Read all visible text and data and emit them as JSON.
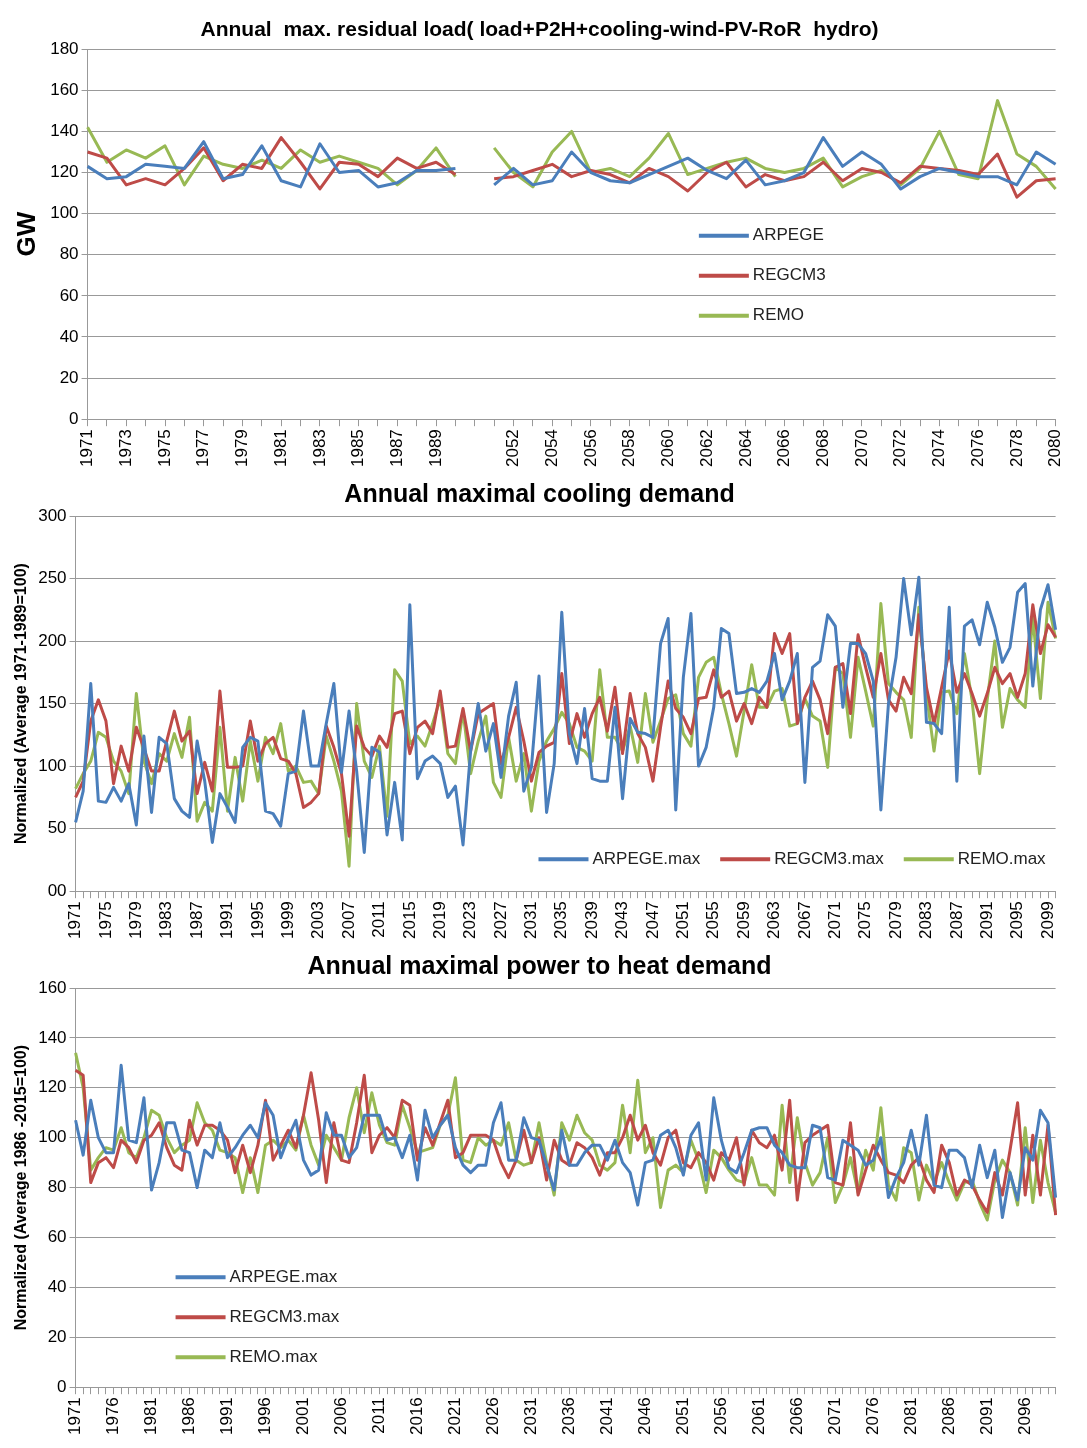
{
  "chart_data": [
    {
      "type": "line",
      "title": "Annual  max. residual load( load+P2H+cooling-wind-PV-RoR  hydro)",
      "ylabel": "GW",
      "categories": [
        "1971",
        null,
        "1973",
        null,
        "1975",
        null,
        "1977",
        null,
        "1979",
        null,
        "1981",
        null,
        "1983",
        null,
        "1985",
        null,
        "1987",
        null,
        "1989",
        null,
        null,
        null,
        "2052",
        null,
        "2054",
        null,
        "2056",
        null,
        "2058",
        null,
        "2060",
        null,
        "2062",
        null,
        "2064",
        null,
        "2066",
        null,
        "2068",
        null,
        "2070",
        null,
        "2072",
        null,
        "2074",
        null,
        "2076",
        null,
        "2078",
        null,
        "2080"
      ],
      "series": [
        {
          "name": "ARPEGE",
          "color": "#4a7ebb",
          "values": [
            123,
            117,
            118,
            124,
            123,
            122,
            135,
            117,
            119,
            133,
            116,
            113,
            134,
            120,
            121,
            113,
            115,
            121,
            121,
            122,
            null,
            114,
            122,
            114,
            116,
            130,
            120,
            116,
            115,
            119,
            123,
            127,
            121,
            117,
            126,
            114,
            116,
            120,
            137,
            123,
            130,
            124,
            112,
            118,
            122,
            120,
            118,
            118,
            114,
            130,
            124
          ]
        },
        {
          "name": "REGCM3",
          "color": "#be4b48",
          "values": [
            130,
            127,
            114,
            117,
            114,
            122,
            132,
            116,
            124,
            122,
            137,
            125,
            112,
            125,
            124,
            118,
            127,
            122,
            125,
            119,
            null,
            117,
            118,
            121,
            124,
            118,
            121,
            119,
            115,
            122,
            118,
            111,
            120,
            125,
            113,
            119,
            116,
            118,
            125,
            116,
            122,
            120,
            115,
            123,
            122,
            121,
            119,
            129,
            108,
            116,
            117
          ]
        },
        {
          "name": "REMO",
          "color": "#98b954",
          "values": [
            142,
            125,
            131,
            127,
            133,
            114,
            128,
            124,
            122,
            126,
            122,
            131,
            125,
            128,
            125,
            122,
            114,
            121,
            132,
            118,
            null,
            132,
            120,
            113,
            130,
            140,
            120,
            122,
            118,
            127,
            139,
            119,
            122,
            125,
            127,
            122,
            120,
            122,
            127,
            113,
            118,
            121,
            114,
            122,
            140,
            119,
            117,
            155,
            129,
            123,
            112
          ]
        }
      ],
      "ylim": [
        0,
        180
      ],
      "yticks": [
        0,
        20,
        40,
        60,
        80,
        100,
        120,
        140,
        160,
        180
      ],
      "grid": "y",
      "legend": "right",
      "marker": "none",
      "line_style": "solid"
    },
    {
      "type": "line",
      "title": "Annual maximal cooling demand",
      "ylabel": "Normalized (Average 1971-1989=100)",
      "categories": [
        "1971",
        null,
        null,
        null,
        "1975",
        null,
        null,
        null,
        "1979",
        null,
        null,
        null,
        "1983",
        null,
        null,
        null,
        "1987",
        null,
        null,
        null,
        "1991",
        null,
        null,
        null,
        "1995",
        null,
        null,
        null,
        "1999",
        null,
        null,
        null,
        "2003",
        null,
        null,
        null,
        "2007",
        null,
        null,
        null,
        "2011",
        null,
        null,
        null,
        "2015",
        null,
        null,
        null,
        "2019",
        null,
        null,
        null,
        "2023",
        null,
        null,
        null,
        "2027",
        null,
        null,
        null,
        "2031",
        null,
        null,
        null,
        "2035",
        null,
        null,
        null,
        "2039",
        null,
        null,
        null,
        "2043",
        null,
        null,
        null,
        "2047",
        null,
        null,
        null,
        "2051",
        null,
        null,
        null,
        "2055",
        null,
        null,
        null,
        "2059",
        null,
        null,
        null,
        "2063",
        null,
        null,
        null,
        "2067",
        null,
        null,
        null,
        "2071",
        null,
        null,
        null,
        "2075",
        null,
        null,
        null,
        "2079",
        null,
        null,
        null,
        "2083",
        null,
        null,
        null,
        "2087",
        null,
        null,
        null,
        "2091",
        null,
        null,
        null,
        "2095",
        null,
        null,
        null,
        "2099",
        null
      ],
      "series": [
        {
          "name": "ARPEGE.max",
          "color": "#4a7ebb",
          "values": [
            55,
            80,
            166,
            72,
            71,
            83,
            72,
            86,
            53,
            124,
            63,
            123,
            118,
            74,
            64,
            59,
            120,
            88,
            39,
            78,
            67,
            55,
            115,
            123,
            120,
            64,
            62,
            52,
            94,
            96,
            144,
            100,
            100,
            134,
            166,
            95,
            144,
            96,
            31,
            115,
            111,
            45,
            87,
            41,
            229,
            90,
            104,
            108,
            102,
            75,
            84,
            37,
            112,
            150,
            112,
            134,
            91,
            140,
            167,
            80,
            99,
            172,
            63,
            102,
            223,
            126,
            102,
            146,
            90,
            88,
            88,
            147,
            74,
            138,
            127,
            126,
            123,
            198,
            218,
            65,
            171,
            222,
            100,
            115,
            147,
            210,
            206,
            158,
            159,
            162,
            159,
            168,
            190,
            153,
            168,
            190,
            87,
            179,
            184,
            221,
            212,
            147,
            198,
            198,
            190,
            168,
            65,
            150,
            187,
            250,
            205,
            251,
            135,
            134,
            126,
            227,
            88,
            212,
            217,
            197,
            231,
            211,
            183,
            195,
            239,
            246,
            164,
            225,
            245,
            209
          ]
        },
        {
          "name": "REGCM3.max",
          "color": "#be4b48",
          "values": [
            75,
            88,
            136,
            153,
            136,
            86,
            116,
            96,
            131,
            114,
            96,
            96,
            120,
            144,
            120,
            128,
            78,
            103,
            80,
            160,
            99,
            99,
            100,
            136,
            104,
            118,
            123,
            106,
            104,
            94,
            67,
            71,
            78,
            132,
            115,
            94,
            44,
            132,
            115,
            108,
            124,
            115,
            142,
            144,
            110,
            131,
            136,
            126,
            160,
            115,
            116,
            146,
            112,
            142,
            146,
            150,
            102,
            123,
            147,
            120,
            88,
            111,
            116,
            119,
            174,
            118,
            142,
            123,
            142,
            155,
            128,
            163,
            110,
            158,
            126,
            115,
            88,
            131,
            168,
            146,
            139,
            126,
            154,
            155,
            177,
            155,
            160,
            136,
            150,
            134,
            155,
            147,
            206,
            190,
            206,
            134,
            155,
            168,
            153,
            126,
            179,
            182,
            142,
            205,
            179,
            155,
            190,
            153,
            144,
            171,
            158,
            221,
            163,
            134,
            163,
            192,
            159,
            174,
            158,
            140,
            158,
            179,
            166,
            174,
            155,
            174,
            229,
            190,
            213,
            203
          ]
        },
        {
          "name": "REMO.max",
          "color": "#98b954",
          "values": [
            82,
            94,
            104,
            127,
            123,
            104,
            96,
            78,
            158,
            104,
            86,
            110,
            104,
            126,
            107,
            139,
            56,
            71,
            64,
            131,
            64,
            107,
            72,
            120,
            88,
            123,
            110,
            134,
            96,
            100,
            87,
            88,
            78,
            124,
            104,
            80,
            20,
            150,
            104,
            91,
            116,
            60,
            177,
            168,
            118,
            124,
            116,
            134,
            154,
            110,
            102,
            144,
            94,
            120,
            140,
            87,
            75,
            123,
            88,
            110,
            64,
            104,
            120,
            130,
            143,
            134,
            115,
            112,
            104,
            177,
            123,
            123,
            112,
            132,
            103,
            158,
            119,
            136,
            154,
            157,
            126,
            116,
            171,
            183,
            187,
            158,
            134,
            108,
            144,
            181,
            147,
            147,
            160,
            162,
            132,
            134,
            154,
            140,
            136,
            99,
            179,
            174,
            123,
            187,
            160,
            132,
            230,
            166,
            159,
            153,
            123,
            227,
            158,
            112,
            159,
            160,
            142,
            190,
            153,
            94,
            153,
            200,
            131,
            162,
            153,
            147,
            219,
            154,
            231,
            202
          ]
        }
      ],
      "ylim": [
        0,
        300
      ],
      "yticks": [
        {
          "value": 0,
          "label": "00"
        },
        50,
        100,
        150,
        200,
        250,
        300
      ],
      "grid": "y",
      "legend": "bottom",
      "marker": "none",
      "line_style": "solid"
    },
    {
      "type": "line",
      "title": "Annual maximal power to heat demand",
      "ylabel": "Normalized (Average 1986 -2015=100)",
      "categories": [
        "1971",
        null,
        null,
        null,
        null,
        "1976",
        null,
        null,
        null,
        null,
        "1981",
        null,
        null,
        null,
        null,
        "1986",
        null,
        null,
        null,
        null,
        "1991",
        null,
        null,
        null,
        null,
        "1996",
        null,
        null,
        null,
        null,
        "2001",
        null,
        null,
        null,
        null,
        "2006",
        null,
        null,
        null,
        null,
        "2011",
        null,
        null,
        null,
        null,
        "2016",
        null,
        null,
        null,
        null,
        "2021",
        null,
        null,
        null,
        null,
        "2026",
        null,
        null,
        null,
        null,
        "2031",
        null,
        null,
        null,
        null,
        "2036",
        null,
        null,
        null,
        null,
        "2041",
        null,
        null,
        null,
        null,
        "2046",
        null,
        null,
        null,
        null,
        "2051",
        null,
        null,
        null,
        null,
        "2056",
        null,
        null,
        null,
        null,
        "2061",
        null,
        null,
        null,
        null,
        "2066",
        null,
        null,
        null,
        null,
        "2071",
        null,
        null,
        null,
        null,
        "2076",
        null,
        null,
        null,
        null,
        "2081",
        null,
        null,
        null,
        null,
        "2086",
        null,
        null,
        null,
        null,
        "2091",
        null,
        null,
        null,
        null,
        "2096",
        null,
        null,
        null,
        null
      ],
      "series": [
        {
          "name": "ARPEGE.max",
          "color": "#4a7ebb",
          "values": [
            107,
            93,
            115,
            100,
            94,
            94,
            129,
            99,
            98,
            116,
            79,
            90,
            106,
            106,
            95,
            94,
            80,
            95,
            92,
            106,
            92,
            96,
            101,
            105,
            100,
            114,
            109,
            92,
            100,
            107,
            91,
            85,
            87,
            110,
            101,
            101,
            92,
            96,
            109,
            109,
            109,
            99,
            100,
            92,
            101,
            83,
            111,
            100,
            105,
            109,
            96,
            89,
            86,
            89,
            89,
            106,
            114,
            91,
            91,
            108,
            100,
            99,
            89,
            79,
            103,
            89,
            89,
            94,
            97,
            97,
            91,
            99,
            90,
            86,
            73,
            90,
            91,
            101,
            103,
            96,
            85,
            101,
            106,
            83,
            116,
            99,
            88,
            86,
            94,
            103,
            104,
            104,
            97,
            94,
            89,
            88,
            88,
            105,
            104,
            84,
            83,
            99,
            97,
            95,
            89,
            91,
            100,
            76,
            84,
            90,
            103,
            89,
            109,
            81,
            80,
            95,
            95,
            92,
            80,
            97,
            84,
            95,
            68,
            86,
            75,
            96,
            91,
            111,
            106,
            76
          ]
        },
        {
          "name": "REGCM3.max",
          "color": "#be4b48",
          "values": [
            127,
            125,
            82,
            90,
            92,
            88,
            99,
            96,
            90,
            99,
            101,
            106,
            96,
            89,
            87,
            107,
            97,
            105,
            105,
            103,
            99,
            86,
            97,
            86,
            97,
            115,
            91,
            97,
            103,
            96,
            109,
            126,
            107,
            82,
            106,
            91,
            90,
            106,
            125,
            94,
            101,
            104,
            100,
            115,
            113,
            91,
            104,
            97,
            106,
            115,
            92,
            94,
            101,
            101,
            101,
            99,
            90,
            84,
            91,
            103,
            90,
            100,
            83,
            99,
            91,
            89,
            98,
            96,
            92,
            85,
            94,
            94,
            100,
            109,
            99,
            105,
            94,
            89,
            100,
            103,
            90,
            88,
            94,
            90,
            83,
            94,
            91,
            100,
            81,
            103,
            98,
            96,
            101,
            87,
            115,
            75,
            98,
            101,
            103,
            105,
            82,
            81,
            106,
            77,
            87,
            97,
            91,
            86,
            85,
            82,
            89,
            92,
            83,
            78,
            97,
            90,
            77,
            83,
            81,
            75,
            70,
            86,
            77,
            95,
            114,
            77,
            101,
            77,
            105,
            69
          ]
        },
        {
          "name": "REMO.max",
          "color": "#98b954",
          "values": [
            134,
            120,
            87,
            92,
            96,
            95,
            104,
            94,
            92,
            100,
            111,
            109,
            100,
            94,
            97,
            99,
            114,
            106,
            103,
            95,
            94,
            92,
            78,
            92,
            78,
            97,
            99,
            96,
            99,
            95,
            109,
            97,
            89,
            101,
            96,
            91,
            108,
            120,
            102,
            118,
            105,
            98,
            97,
            113,
            104,
            94,
            95,
            96,
            105,
            109,
            124,
            91,
            90,
            100,
            97,
            99,
            97,
            106,
            91,
            89,
            90,
            106,
            90,
            77,
            106,
            99,
            109,
            102,
            99,
            89,
            87,
            90,
            113,
            94,
            123,
            94,
            100,
            72,
            87,
            89,
            86,
            99,
            91,
            78,
            95,
            92,
            87,
            83,
            82,
            92,
            81,
            81,
            77,
            113,
            82,
            108,
            90,
            81,
            86,
            100,
            74,
            81,
            92,
            78,
            95,
            87,
            112,
            81,
            75,
            96,
            94,
            75,
            89,
            82,
            90,
            82,
            75,
            82,
            83,
            74,
            67,
            83,
            91,
            86,
            73,
            104,
            74,
            99,
            82,
            70
          ]
        }
      ],
      "ylim": [
        0,
        160
      ],
      "yticks": [
        0,
        20,
        40,
        60,
        80,
        100,
        120,
        140,
        160
      ],
      "grid": "y",
      "legend": "bottom left",
      "marker": "none",
      "line_style": "solid"
    }
  ]
}
